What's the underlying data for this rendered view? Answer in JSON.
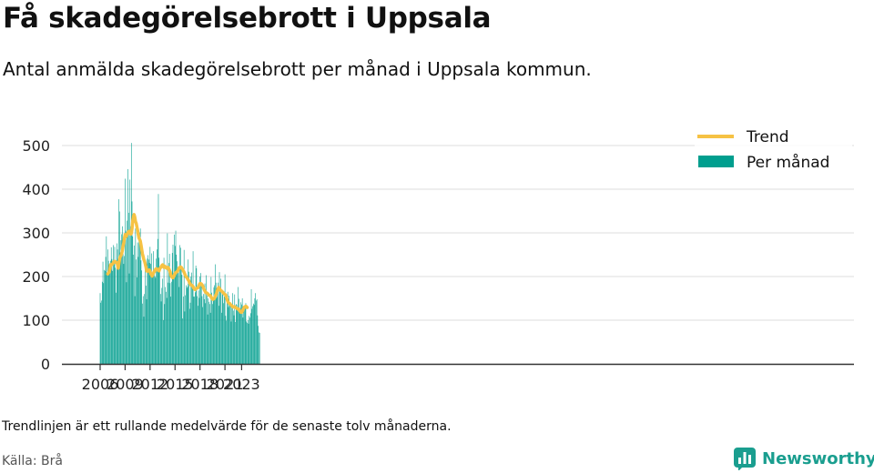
{
  "title": "Få skadegörelsebrott i Uppsala",
  "subtitle": "Antal anmälda skadegörelsebrott per månad i Uppsala kommun.",
  "note": "Trendlinjen är ett rullande medelvärde för de senaste tolv månaderna.",
  "source": "Källa: Brå",
  "brand": {
    "name": "Newsworthy",
    "icon": "bar-chart-logo-icon"
  },
  "colors": {
    "bars": "#009e8e",
    "trend": "#f6c244",
    "grid": "#dddddd",
    "axis": "#333333"
  },
  "chart_data": {
    "type": "bar",
    "title": "",
    "xlabel": "",
    "ylabel": "",
    "ylim": [
      0,
      520
    ],
    "yticks": [
      0,
      100,
      200,
      300,
      400,
      500
    ],
    "xticks": [
      "2006",
      "2009",
      "2012",
      "2015",
      "2018",
      "2021",
      "2023"
    ],
    "xticks_years": [
      2006,
      2009,
      2012,
      2015,
      2018,
      2021,
      2023
    ],
    "start": "2006-01",
    "grid": true,
    "legend_position": "top-right",
    "series": [
      {
        "name": "Per månad",
        "kind": "bar",
        "values": [
          162,
          140,
          145,
          188,
          234,
          185,
          215,
          213,
          245,
          292,
          205,
          262,
          236,
          209,
          218,
          236,
          267,
          240,
          213,
          272,
          235,
          268,
          220,
          163,
          276,
          262,
          236,
          377,
          349,
          255,
          283,
          297,
          315,
          272,
          229,
          247,
          424,
          305,
          187,
          328,
          446,
          346,
          207,
          422,
          315,
          506,
          372,
          292,
          250,
          271,
          155,
          310,
          239,
          198,
          278,
          245,
          298,
          301,
          310,
          237,
          214,
          138,
          155,
          108,
          160,
          225,
          179,
          148,
          241,
          249,
          239,
          231,
          268,
          229,
          253,
          208,
          199,
          258,
          216,
          200,
          197,
          241,
          262,
          286,
          389,
          243,
          223,
          160,
          143,
          174,
          195,
          100,
          243,
          137,
          176,
          165,
          151,
          299,
          186,
          231,
          252,
          185,
          154,
          188,
          254,
          273,
          205,
          296,
          270,
          305,
          250,
          235,
          213,
          219,
          176,
          272,
          266,
          218,
          204,
          104,
          154,
          261,
          120,
          157,
          180,
          174,
          177,
          239,
          211,
          126,
          140,
          200,
          209,
          182,
          258,
          154,
          154,
          164,
          225,
          219,
          155,
          133,
          168,
          151,
          200,
          208,
          180,
          155,
          130,
          160,
          148,
          184,
          139,
          203,
          156,
          113,
          150,
          142,
          137,
          117,
          199,
          163,
          137,
          147,
          175,
          180,
          228,
          186,
          152,
          155,
          186,
          133,
          210,
          166,
          195,
          117,
          169,
          168,
          139,
          154,
          205,
          110,
          99,
          142,
          165,
          130,
          156,
          138,
          139,
          97,
          137,
          162,
          122,
          111,
          159,
          96,
          137,
          135,
          122,
          176,
          149,
          123,
          128,
          141,
          136,
          150,
          106,
          121,
          130,
          132,
          139,
          97,
          94,
          100,
          92,
          110,
          106,
          116,
          171,
          126,
          132,
          138,
          135,
          150,
          162,
          145,
          148,
          111,
          87,
          72,
          71
        ]
      },
      {
        "name": "Trend",
        "kind": "line",
        "start_index": 11,
        "values": [
          206,
          208,
          210,
          217,
          227,
          226,
          228,
          229,
          232,
          234,
          235,
          234,
          232,
          232,
          228,
          219,
          228,
          239,
          245,
          248,
          252,
          259,
          269,
          277,
          288,
          296,
          291,
          293,
          298,
          300,
          303,
          304,
          300,
          297,
          299,
          310,
          328,
          338,
          342,
          336,
          326,
          322,
          314,
          306,
          296,
          288,
          285,
          281,
          272,
          262,
          252,
          246,
          239,
          235,
          229,
          222,
          213,
          212,
          215,
          213,
          215,
          211,
          206,
          204,
          201,
          205,
          208,
          212,
          212,
          217,
          218,
          217,
          216,
          214,
          213,
          218,
          220,
          222,
          225,
          227,
          223,
          221,
          224,
          222,
          220,
          219,
          221,
          221,
          218,
          214,
          210,
          202,
          200,
          198,
          197,
          200,
          203,
          207,
          209,
          210,
          211,
          213,
          217,
          220,
          221,
          222,
          221,
          218,
          216,
          213,
          210,
          206,
          202,
          199,
          198,
          195,
          192,
          190,
          185,
          183,
          180,
          180,
          179,
          177,
          173,
          171,
          170,
          172,
          173,
          174,
          174,
          177,
          181,
          184,
          184,
          183,
          181,
          178,
          174,
          170,
          167,
          164,
          163,
          162,
          161,
          159,
          157,
          157,
          156,
          153,
          150,
          148,
          148,
          149,
          151,
          155,
          158,
          162,
          168,
          172,
          175,
          173,
          170,
          168,
          167,
          165,
          164,
          162,
          160,
          159,
          158,
          152,
          148,
          143,
          140,
          139,
          138,
          136,
          134,
          133,
          131,
          130,
          131,
          131,
          129,
          128,
          127,
          126,
          126,
          125,
          122,
          120,
          118,
          118,
          120,
          124,
          127,
          130,
          131,
          132,
          131,
          129
        ]
      }
    ]
  }
}
